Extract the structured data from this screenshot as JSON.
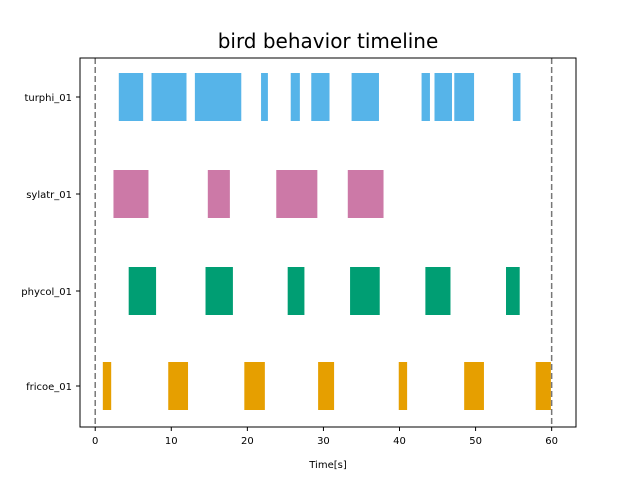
{
  "chart_data": {
    "type": "timeline",
    "title": "bird behavior timeline",
    "xlabel": "Time[s]",
    "ylabel": "",
    "xlim": [
      -2,
      63.2
    ],
    "xticks": [
      0,
      10,
      20,
      30,
      40,
      50,
      60
    ],
    "grid": false,
    "reference_lines": [
      {
        "x": 0,
        "style": "dashed",
        "color": "#777777"
      },
      {
        "x": 60,
        "style": "dashed",
        "color": "#777777"
      }
    ],
    "series": [
      {
        "name": "turphi_01",
        "color": "#56B4E9",
        "intervals": [
          [
            3.1,
            6.3
          ],
          [
            7.4,
            12.0
          ],
          [
            13.1,
            19.2
          ],
          [
            21.8,
            22.7
          ],
          [
            25.7,
            26.9
          ],
          [
            28.4,
            30.8
          ],
          [
            33.7,
            37.3
          ],
          [
            42.9,
            44.0
          ],
          [
            44.6,
            46.9
          ],
          [
            47.2,
            49.8
          ],
          [
            54.9,
            55.9
          ]
        ]
      },
      {
        "name": "sylatr_01",
        "color": "#CC79A7",
        "intervals": [
          [
            2.4,
            7.0
          ],
          [
            14.8,
            17.7
          ],
          [
            23.8,
            29.2
          ],
          [
            33.2,
            37.9
          ]
        ]
      },
      {
        "name": "phycol_01",
        "color": "#009E73",
        "intervals": [
          [
            4.4,
            8.0
          ],
          [
            14.5,
            18.1
          ],
          [
            25.3,
            27.5
          ],
          [
            33.5,
            37.4
          ],
          [
            43.4,
            46.7
          ],
          [
            54.0,
            55.8
          ]
        ]
      },
      {
        "name": "fricoe_01",
        "color": "#E69F00",
        "intervals": [
          [
            1.0,
            2.1
          ],
          [
            9.6,
            12.2
          ],
          [
            19.6,
            22.3
          ],
          [
            29.3,
            31.4
          ],
          [
            39.9,
            41.0
          ],
          [
            48.5,
            51.1
          ],
          [
            57.9,
            59.9
          ]
        ]
      }
    ]
  }
}
